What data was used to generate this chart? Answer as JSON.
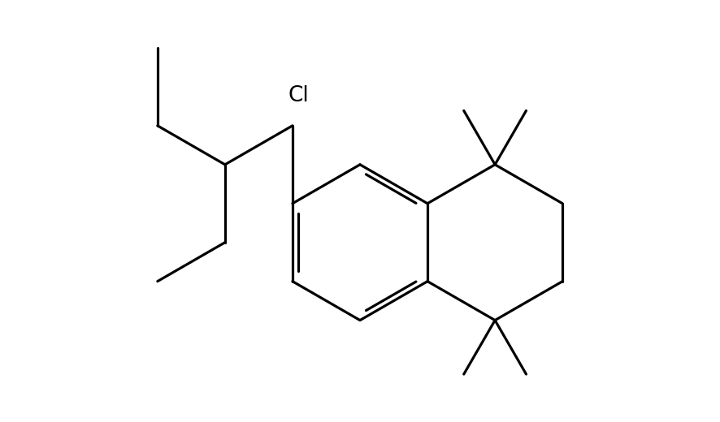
{
  "background_color": "#ffffff",
  "line_color": "#000000",
  "line_width": 2.3,
  "Cl_label": "Cl",
  "Cl_fontsize": 19,
  "label_color": "#000000",
  "fig_width": 8.86,
  "fig_height": 5.2
}
